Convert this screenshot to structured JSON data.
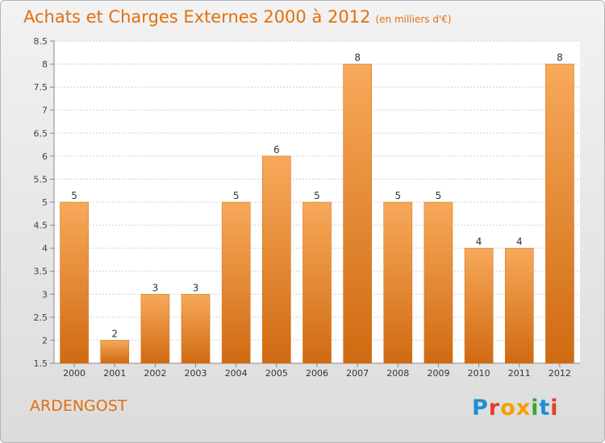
{
  "header": {
    "title": "Achats et Charges Externes 2000 à 2012",
    "unit_note": "(en milliers d'€)"
  },
  "place_name": "ARDENGOST",
  "brand": {
    "letters": [
      "P",
      "r",
      "o",
      "x",
      "i",
      "t",
      "i"
    ],
    "colors": [
      "#1e8fd6",
      "#e83a2e",
      "#f5a000",
      "#f5a000",
      "#3aa536",
      "#1e8fd6",
      "#e83a2e"
    ]
  },
  "colors": {
    "accent": "#e07010",
    "bar_top": "#f7a95a",
    "bar_bottom": "#d06a12",
    "plot_bg": "#ffffff",
    "grid": "#cfcfcf"
  },
  "chart_data": {
    "type": "bar",
    "categories": [
      "2000",
      "2001",
      "2002",
      "2003",
      "2004",
      "2005",
      "2006",
      "2007",
      "2008",
      "2009",
      "2010",
      "2011",
      "2012"
    ],
    "values": [
      5,
      2,
      3,
      3,
      5,
      6,
      5,
      8,
      5,
      5,
      4,
      4,
      8
    ],
    "data_labels": [
      "5",
      "2",
      "3",
      "3",
      "5",
      "6",
      "5",
      "8",
      "5",
      "5",
      "4",
      "4",
      "8"
    ],
    "ylim": [
      1.5,
      8.5
    ],
    "yticks": [
      "1.5",
      "2",
      "2.5",
      "3",
      "3.5",
      "4",
      "4.5",
      "5",
      "5.5",
      "6",
      "6.5",
      "7",
      "7.5",
      "8",
      "8.5"
    ],
    "grid": true,
    "title": "Achats et Charges Externes 2000 à 2012",
    "xlabel": "",
    "ylabel": ""
  }
}
